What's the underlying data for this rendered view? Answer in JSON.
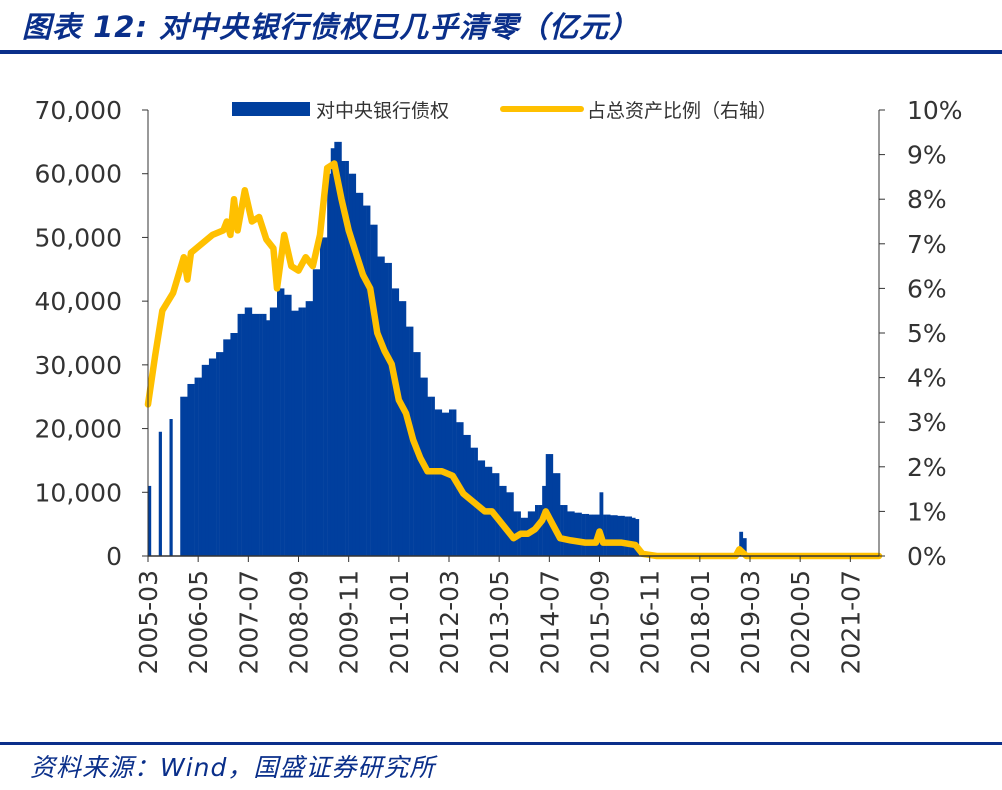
{
  "figure": {
    "title": "图表 12: 对中央银行债权已几乎清零（亿元）",
    "source": "资料来源：Wind，国盛证券研究所"
  },
  "colors": {
    "bars": "#003f9e",
    "line": "#ffc000",
    "rules": "#0a2f8a",
    "text": "#333333"
  },
  "chart_data": {
    "type": "bar+line",
    "title": "",
    "legend_position": "top",
    "grid": false,
    "y_left": {
      "min": 0,
      "max": 70000,
      "ticks": [
        0,
        10000,
        20000,
        30000,
        40000,
        50000,
        60000,
        70000
      ],
      "tick_labels": [
        "0",
        "10,000",
        "20,000",
        "30,000",
        "40,000",
        "50,000",
        "60,000",
        "70,000"
      ]
    },
    "y_right": {
      "min": 0,
      "max": 10,
      "unit": "%",
      "ticks": [
        0,
        1,
        2,
        3,
        4,
        5,
        6,
        7,
        8,
        9,
        10
      ],
      "tick_labels": [
        "0%",
        "1%",
        "2%",
        "3%",
        "4%",
        "5%",
        "6%",
        "7%",
        "8%",
        "9%",
        "10%"
      ]
    },
    "x_range": [
      "2005-03",
      "2022-03"
    ],
    "x_tick_labels": [
      "2005-03",
      "2006-05",
      "2007-07",
      "2008-09",
      "2009-11",
      "2011-01",
      "2012-03",
      "2013-05",
      "2014-07",
      "2015-09",
      "2016-11",
      "2018-01",
      "2019-03",
      "2020-05",
      "2021-07"
    ],
    "series": [
      {
        "name": "对中央银行债权",
        "type": "bar",
        "axis": "left",
        "points": [
          [
            "2005-03",
            11000
          ],
          [
            "2005-06",
            19500
          ],
          [
            "2005-09",
            21500
          ],
          [
            "2005-12",
            25000
          ],
          [
            "2006-02",
            27000
          ],
          [
            "2006-04",
            28000
          ],
          [
            "2006-06",
            30000
          ],
          [
            "2006-08",
            31000
          ],
          [
            "2006-10",
            32000
          ],
          [
            "2006-12",
            34000
          ],
          [
            "2007-02",
            35000
          ],
          [
            "2007-04",
            38000
          ],
          [
            "2007-06",
            39000
          ],
          [
            "2007-08",
            38000
          ],
          [
            "2007-10",
            38000
          ],
          [
            "2007-12",
            37000
          ],
          [
            "2008-01",
            39000
          ],
          [
            "2008-03",
            42000
          ],
          [
            "2008-05",
            41000
          ],
          [
            "2008-07",
            38500
          ],
          [
            "2008-09",
            39000
          ],
          [
            "2008-11",
            40000
          ],
          [
            "2009-01",
            45000
          ],
          [
            "2009-03",
            50000
          ],
          [
            "2009-05",
            60000
          ],
          [
            "2009-06",
            64000
          ],
          [
            "2009-07",
            65000
          ],
          [
            "2009-09",
            62000
          ],
          [
            "2009-11",
            60000
          ],
          [
            "2010-01",
            57000
          ],
          [
            "2010-03",
            55000
          ],
          [
            "2010-05",
            52000
          ],
          [
            "2010-07",
            47000
          ],
          [
            "2010-09",
            46000
          ],
          [
            "2010-11",
            42000
          ],
          [
            "2011-01",
            40000
          ],
          [
            "2011-03",
            36000
          ],
          [
            "2011-05",
            32000
          ],
          [
            "2011-07",
            28000
          ],
          [
            "2011-09",
            25000
          ],
          [
            "2011-11",
            23000
          ],
          [
            "2012-01",
            22500
          ],
          [
            "2012-03",
            23000
          ],
          [
            "2012-05",
            21000
          ],
          [
            "2012-07",
            19000
          ],
          [
            "2012-09",
            17000
          ],
          [
            "2012-11",
            15000
          ],
          [
            "2013-01",
            14000
          ],
          [
            "2013-03",
            13000
          ],
          [
            "2013-05",
            11000
          ],
          [
            "2013-07",
            10000
          ],
          [
            "2013-09",
            7000
          ],
          [
            "2013-11",
            6000
          ],
          [
            "2014-01",
            7000
          ],
          [
            "2014-03",
            8000
          ],
          [
            "2014-05",
            11000
          ],
          [
            "2014-06",
            16000
          ],
          [
            "2014-08",
            13000
          ],
          [
            "2014-10",
            8000
          ],
          [
            "2014-12",
            7000
          ],
          [
            "2015-02",
            6800
          ],
          [
            "2015-04",
            6600
          ],
          [
            "2015-06",
            6500
          ],
          [
            "2015-08",
            6500
          ],
          [
            "2015-09",
            10000
          ],
          [
            "2015-10",
            6500
          ],
          [
            "2015-12",
            6400
          ],
          [
            "2016-02",
            6300
          ],
          [
            "2016-04",
            6200
          ],
          [
            "2016-06",
            6000
          ],
          [
            "2016-07",
            5800
          ],
          [
            "2016-08",
            0
          ],
          [
            "2018-12",
            3800
          ],
          [
            "2019-01",
            2800
          ]
        ]
      },
      {
        "name": "占总资产比例（右轴）",
        "type": "line",
        "axis": "right",
        "points": [
          [
            "2005-03",
            3.4
          ],
          [
            "2005-05",
            4.5
          ],
          [
            "2005-07",
            5.5
          ],
          [
            "2005-10",
            5.9
          ],
          [
            "2006-01",
            6.7
          ],
          [
            "2006-02",
            6.2
          ],
          [
            "2006-03",
            6.8
          ],
          [
            "2006-06",
            7.0
          ],
          [
            "2006-09",
            7.2
          ],
          [
            "2006-12",
            7.3
          ],
          [
            "2007-01",
            7.5
          ],
          [
            "2007-02",
            7.2
          ],
          [
            "2007-03",
            8.0
          ],
          [
            "2007-04",
            7.3
          ],
          [
            "2007-06",
            8.2
          ],
          [
            "2007-08",
            7.5
          ],
          [
            "2007-10",
            7.6
          ],
          [
            "2007-12",
            7.1
          ],
          [
            "2008-02",
            6.9
          ],
          [
            "2008-03",
            6.0
          ],
          [
            "2008-05",
            7.2
          ],
          [
            "2008-07",
            6.5
          ],
          [
            "2008-09",
            6.4
          ],
          [
            "2008-11",
            6.7
          ],
          [
            "2009-01",
            6.5
          ],
          [
            "2009-03",
            7.2
          ],
          [
            "2009-05",
            8.7
          ],
          [
            "2009-07",
            8.8
          ],
          [
            "2009-09",
            8.0
          ],
          [
            "2009-11",
            7.3
          ],
          [
            "2010-01",
            6.8
          ],
          [
            "2010-03",
            6.3
          ],
          [
            "2010-05",
            6.0
          ],
          [
            "2010-07",
            5.0
          ],
          [
            "2010-09",
            4.6
          ],
          [
            "2010-11",
            4.3
          ],
          [
            "2011-01",
            3.5
          ],
          [
            "2011-03",
            3.2
          ],
          [
            "2011-05",
            2.6
          ],
          [
            "2011-07",
            2.2
          ],
          [
            "2011-09",
            1.9
          ],
          [
            "2011-11",
            1.9
          ],
          [
            "2012-01",
            1.9
          ],
          [
            "2012-04",
            1.8
          ],
          [
            "2012-07",
            1.4
          ],
          [
            "2012-10",
            1.2
          ],
          [
            "2013-01",
            1.0
          ],
          [
            "2013-03",
            1.0
          ],
          [
            "2013-05",
            0.8
          ],
          [
            "2013-07",
            0.6
          ],
          [
            "2013-09",
            0.4
          ],
          [
            "2013-11",
            0.5
          ],
          [
            "2014-01",
            0.5
          ],
          [
            "2014-03",
            0.6
          ],
          [
            "2014-05",
            0.8
          ],
          [
            "2014-06",
            1.0
          ],
          [
            "2014-08",
            0.7
          ],
          [
            "2014-10",
            0.4
          ],
          [
            "2015-01",
            0.35
          ],
          [
            "2015-05",
            0.3
          ],
          [
            "2015-08",
            0.3
          ],
          [
            "2015-09",
            0.55
          ],
          [
            "2015-10",
            0.3
          ],
          [
            "2016-03",
            0.3
          ],
          [
            "2016-07",
            0.25
          ],
          [
            "2016-09",
            0.05
          ],
          [
            "2017-01",
            0.0
          ],
          [
            "2018-11",
            0.0
          ],
          [
            "2018-12",
            0.15
          ],
          [
            "2019-02",
            0.0
          ],
          [
            "2022-03",
            0.0
          ]
        ]
      }
    ]
  }
}
